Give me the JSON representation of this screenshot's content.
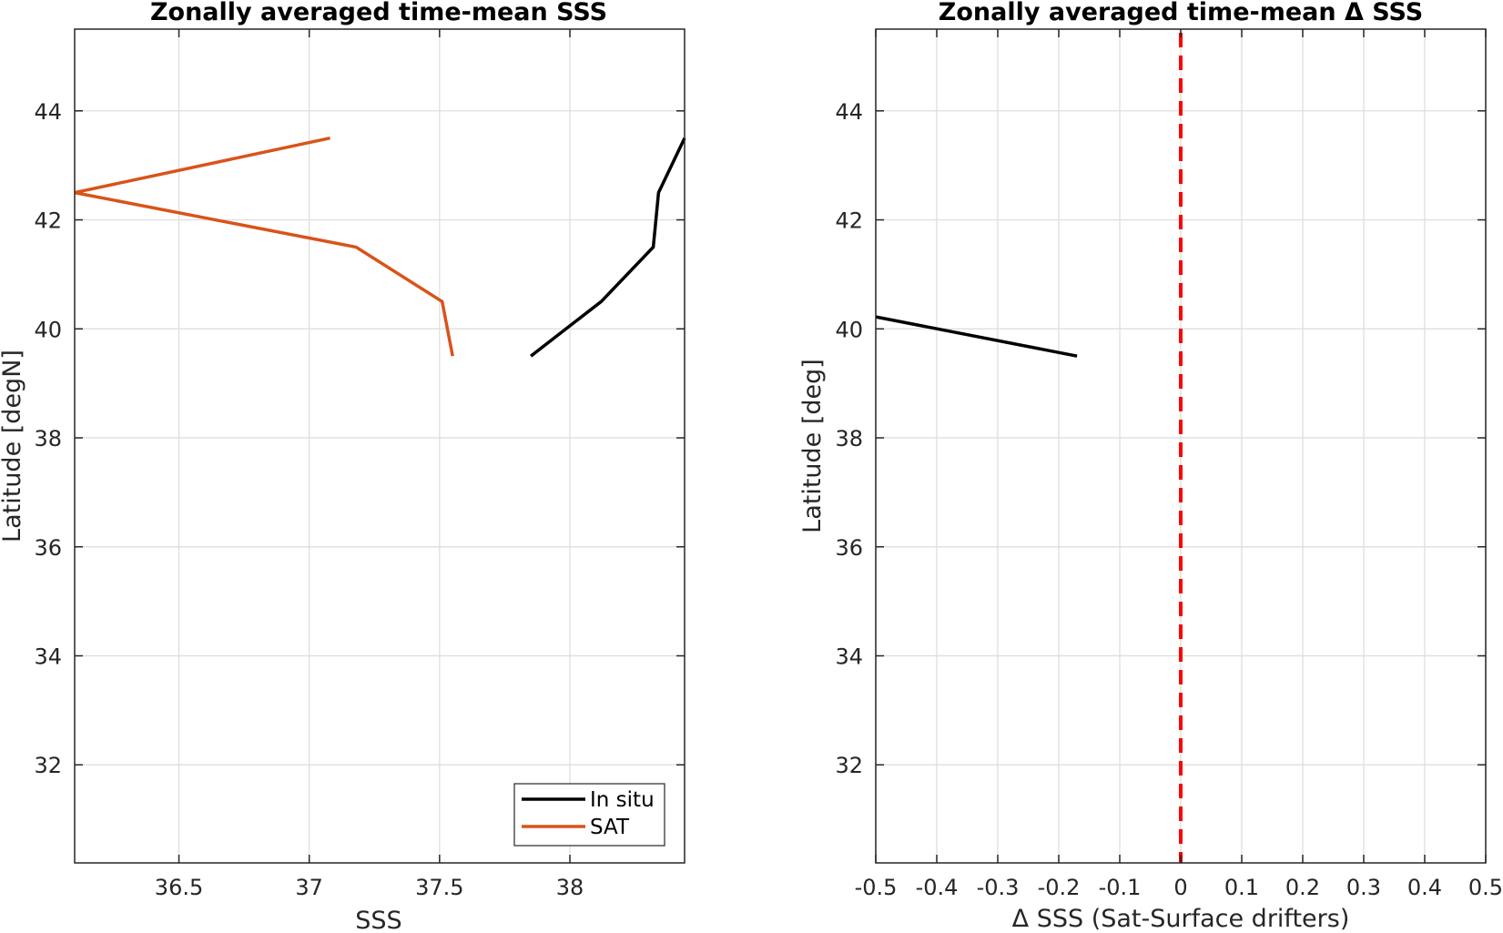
{
  "chart_data": [
    {
      "type": "line",
      "title": "Zonally averaged time-mean SSS",
      "xlabel": "SSS",
      "ylabel": "Latitude [degN]",
      "xlim": [
        36.1,
        38.44
      ],
      "ylim": [
        30.2,
        45.5
      ],
      "xticks": [
        36.5,
        37,
        37.5,
        38
      ],
      "xtick_labels": [
        "36.5",
        "37",
        "37.5",
        "38"
      ],
      "yticks": [
        32,
        34,
        36,
        38,
        40,
        42,
        44
      ],
      "ytick_labels": [
        "32",
        "34",
        "36",
        "38",
        "40",
        "42",
        "44"
      ],
      "grid": true,
      "legend_placement": "bottom-right",
      "series": [
        {
          "name": "In situ",
          "color": "#000000",
          "x": [
            37.85,
            38.12,
            38.32,
            38.34,
            38.44
          ],
          "y": [
            39.5,
            40.5,
            41.5,
            42.5,
            43.5
          ]
        },
        {
          "name": "SAT",
          "color": "#D95319",
          "x": [
            37.55,
            37.51,
            37.18,
            36.1,
            37.08
          ],
          "y": [
            39.5,
            40.5,
            41.5,
            42.5,
            43.5
          ]
        }
      ]
    },
    {
      "type": "line",
      "title": "Zonally averaged time-mean Δ SSS",
      "xlabel": "Δ SSS (Sat-Surface drifters)",
      "ylabel": "Latitude [deg]",
      "xlim": [
        -0.5,
        0.5
      ],
      "ylim": [
        30.2,
        45.5
      ],
      "xticks": [
        -0.5,
        -0.4,
        -0.3,
        -0.2,
        -0.1,
        0,
        0.1,
        0.2,
        0.3,
        0.4,
        0.5
      ],
      "xtick_labels": [
        "-0.5",
        "-0.4",
        "-0.3",
        "-0.2",
        "-0.1",
        "0",
        "0.1",
        "0.2",
        "0.3",
        "0.4",
        "0.5"
      ],
      "yticks": [
        32,
        34,
        36,
        38,
        40,
        42,
        44
      ],
      "ytick_labels": [
        "32",
        "34",
        "36",
        "38",
        "40",
        "42",
        "44"
      ],
      "grid": true,
      "reference_line": {
        "x": 0,
        "color": "#FF0000",
        "style": "dashed"
      },
      "series": [
        {
          "color": "#000000",
          "x": [
            -0.5,
            -0.17
          ],
          "y": [
            40.22,
            39.5
          ]
        }
      ]
    }
  ]
}
